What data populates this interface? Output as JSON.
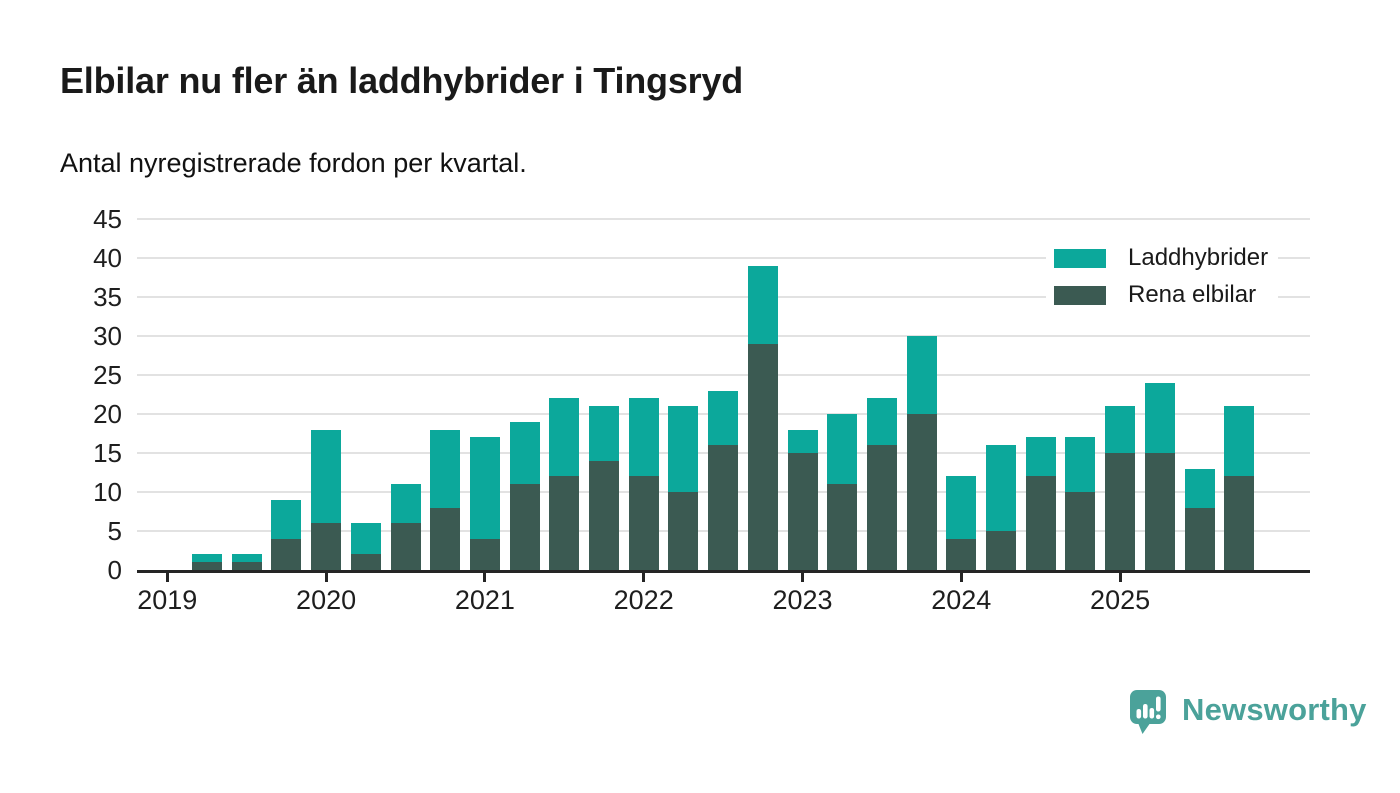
{
  "chart_data": {
    "type": "bar",
    "stacked": true,
    "title": "Elbilar nu fler än laddhybrider i Tingsryd",
    "subtitle": "Antal nyregistrerade fordon per kvartal.",
    "xlabel": "",
    "ylabel": "",
    "ylim": [
      0,
      45
    ],
    "y_ticks": [
      0,
      5,
      10,
      15,
      20,
      25,
      30,
      35,
      40,
      45
    ],
    "grid": true,
    "legend_position": "top-right",
    "categories": [
      "2019 Q1",
      "2019 Q2",
      "2019 Q3",
      "2019 Q4",
      "2020 Q1",
      "2020 Q2",
      "2020 Q3",
      "2020 Q4",
      "2021 Q1",
      "2021 Q2",
      "2021 Q3",
      "2021 Q4",
      "2022 Q1",
      "2022 Q2",
      "2022 Q3",
      "2022 Q4",
      "2023 Q1",
      "2023 Q2",
      "2023 Q3",
      "2023 Q4",
      "2024 Q1",
      "2024 Q2",
      "2024 Q3",
      "2024 Q4",
      "2025 Q1",
      "2025 Q2",
      "2025 Q3",
      "2025 Q4"
    ],
    "x_year_ticks": [
      {
        "label": "2019",
        "slot": 0
      },
      {
        "label": "2020",
        "slot": 4
      },
      {
        "label": "2021",
        "slot": 8
      },
      {
        "label": "2022",
        "slot": 12
      },
      {
        "label": "2023",
        "slot": 16
      },
      {
        "label": "2024",
        "slot": 20
      },
      {
        "label": "2025",
        "slot": 24
      }
    ],
    "series": [
      {
        "name": "Laddhybrider",
        "color": "#0ca89b",
        "stack_order": "top",
        "values": [
          0,
          1,
          1,
          5,
          12,
          4,
          5,
          10,
          13,
          8,
          10,
          7,
          10,
          11,
          7,
          10,
          3,
          9,
          6,
          10,
          8,
          11,
          5,
          7,
          6,
          9,
          5,
          9
        ]
      },
      {
        "name": "Rena elbilar",
        "color": "#3b5a52",
        "stack_order": "bottom",
        "values": [
          0,
          1,
          1,
          4,
          6,
          2,
          6,
          8,
          4,
          11,
          12,
          14,
          12,
          10,
          16,
          29,
          15,
          11,
          16,
          20,
          4,
          5,
          12,
          10,
          15,
          15,
          8,
          12
        ]
      }
    ],
    "stacked_totals": [
      0,
      2,
      2,
      9,
      18,
      6,
      11,
      18,
      17,
      19,
      22,
      21,
      22,
      21,
      23,
      39,
      18,
      20,
      22,
      30,
      12,
      16,
      17,
      17,
      21,
      24,
      13,
      21
    ]
  },
  "axis_style": {
    "grid_color": "#e2e2e2",
    "axis_color": "#252525",
    "text_color": "#1e1e1e"
  },
  "branding": {
    "wordmark": "Newsworthy",
    "color": "#4ba29a"
  }
}
